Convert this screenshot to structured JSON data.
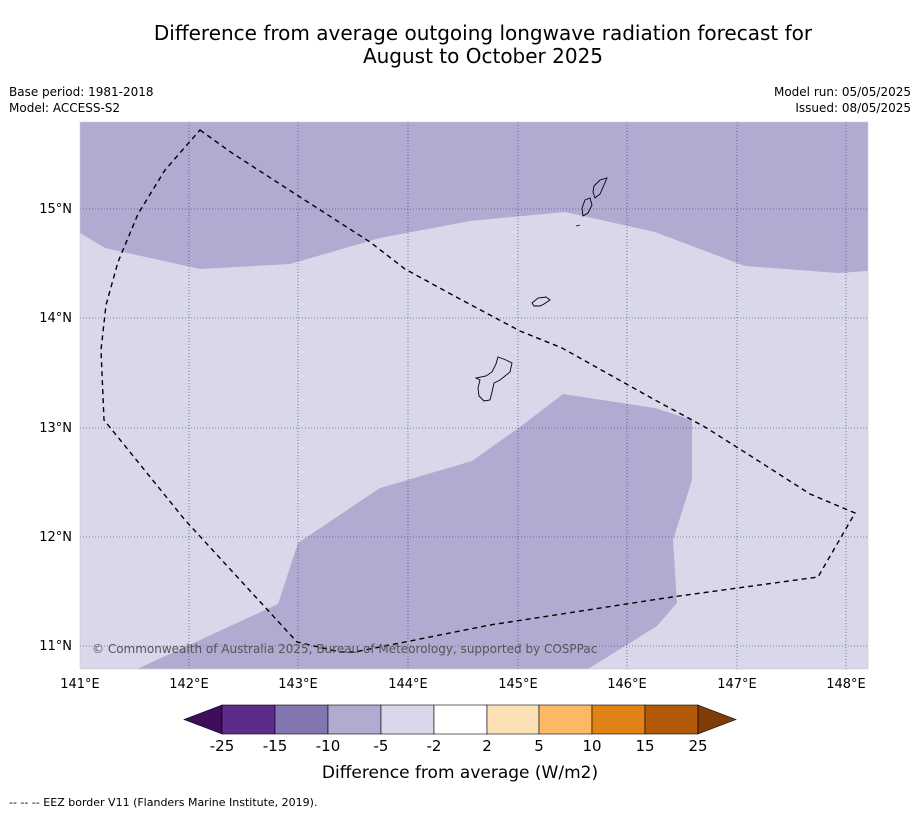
{
  "header": {
    "title_line1": "Difference from average outgoing longwave radiation forecast for",
    "title_line2": "August to October 2025",
    "base_period": "Base period: 1981-2018",
    "model": "Model: ACCESS-S2",
    "model_run": "Model run: 05/05/2025",
    "issued": "Issued: 08/05/2025"
  },
  "map": {
    "lon_labels": [
      "141°E",
      "142°E",
      "143°E",
      "144°E",
      "145°E",
      "146°E",
      "147°E",
      "148°E"
    ],
    "lat_labels": [
      "15°N",
      "14°N",
      "13°N",
      "12°N",
      "11°N"
    ],
    "credit": "© Commonwealth of Australia 2025, Bureau of Meteorology, supported by COSPPac",
    "colors": {
      "minus5_to_minus2": "#d8d8ea",
      "minus10_to_minus5": "#b1abd1"
    }
  },
  "colorbar": {
    "title": "Difference from average (W/m2)",
    "ticks": [
      "-25",
      "-15",
      "-10",
      "-5",
      "-2",
      "2",
      "5",
      "10",
      "15",
      "25"
    ],
    "colors": [
      "#3f0d5c",
      "#5e2a8c",
      "#8375b0",
      "#b1abd1",
      "#d8d8ea",
      "#ffffff",
      "#fee0b6",
      "#fdb863",
      "#e08214",
      "#b35806",
      "#7f3b08"
    ]
  },
  "footer": {
    "legend": "--  --  -- EEZ border V11 (Flanders Marine Institute, 2019)."
  }
}
